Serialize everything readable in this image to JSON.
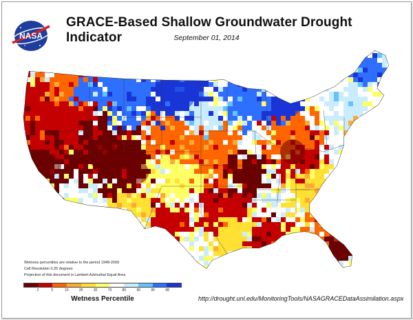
{
  "header": {
    "title": "GRACE-Based Shallow Groundwater Drought Indicator",
    "date": "September 01, 2014",
    "logo_text": "NASA"
  },
  "notes": [
    "Wetness percentiles are relative to the period 1948-2009",
    "Cell Resolution 0.25 degrees",
    "Projection of this document is Lambert Azimuthal Equal Area"
  ],
  "legend": {
    "title": "Wetness Percentile",
    "colors": [
      "#6b0000",
      "#c40000",
      "#ff6600",
      "#ffaa33",
      "#ffe033",
      "#ffff66",
      "#ffffff",
      "#c9ecff",
      "#66c2ff",
      "#2f6fff",
      "#1a35d6"
    ],
    "ticks": [
      "2",
      "5",
      "10",
      "20",
      "30",
      "70",
      "80",
      "90",
      "95",
      "98"
    ]
  },
  "source_url": "http://drought.unl.edu/MonitoringTools/NASAGRACEDataAssimilation.aspx"
}
